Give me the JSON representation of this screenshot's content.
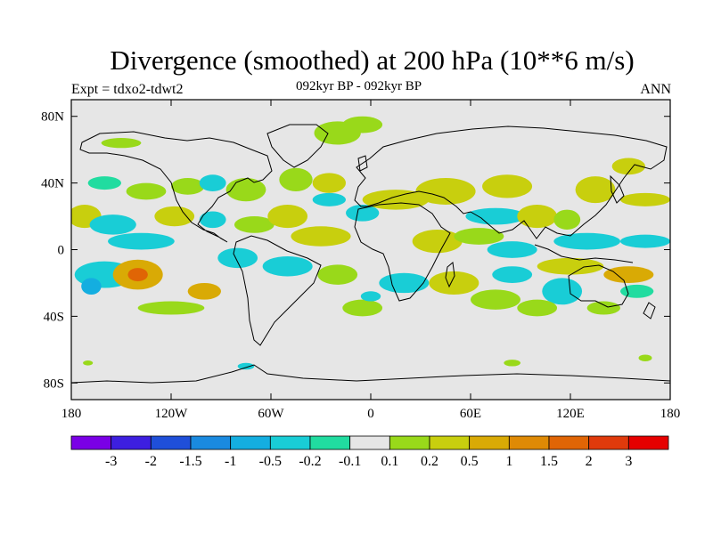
{
  "header": {
    "title": "Divergence (smoothed) at 200 hPa (10**6 m/s)",
    "experiment": "Expt = tdxo2-tdwt2",
    "period": "092kyr BP - 092kyr BP",
    "season": "ANN"
  },
  "map": {
    "projection": "cylindrical-equidistant",
    "lon_range": [
      -180,
      180
    ],
    "lat_range": [
      -90,
      90
    ],
    "background_color": "#e6e6e6",
    "x_ticks": [
      {
        "value": -180,
        "label": "180"
      },
      {
        "value": -120,
        "label": "120W"
      },
      {
        "value": -60,
        "label": "60W"
      },
      {
        "value": 0,
        "label": "0"
      },
      {
        "value": 60,
        "label": "60E"
      },
      {
        "value": 120,
        "label": "120E"
      },
      {
        "value": 180,
        "label": "180"
      }
    ],
    "y_ticks": [
      {
        "value": 80,
        "label": "80N"
      },
      {
        "value": 40,
        "label": "40N"
      },
      {
        "value": 0,
        "label": "0"
      },
      {
        "value": -40,
        "label": "40S"
      },
      {
        "value": -80,
        "label": "80S"
      }
    ]
  },
  "colorbar": {
    "colors": [
      "#7a00e6",
      "#3d1fe0",
      "#1f4fd9",
      "#1a8ae0",
      "#14aee0",
      "#19cdd6",
      "#21dca0",
      "#e6e6e6",
      "#99d91a",
      "#c8cf0e",
      "#d9aa05",
      "#df8a05",
      "#e06505",
      "#e03a0c",
      "#e60000"
    ],
    "labels": [
      "-3",
      "-2",
      "-1.5",
      "-1",
      "-0.5",
      "-0.2",
      "-0.1",
      "0.1",
      "0.2",
      "0.5",
      "1",
      "1.5",
      "2",
      "3"
    ]
  },
  "regions": [
    {
      "lon": -20,
      "lat": 70,
      "rx": 14,
      "ry": 7,
      "level": 8
    },
    {
      "lon": -5,
      "lat": 75,
      "rx": 12,
      "ry": 5,
      "level": 8
    },
    {
      "lon": -150,
      "lat": 64,
      "rx": 12,
      "ry": 3,
      "level": 8
    },
    {
      "lon": -160,
      "lat": 40,
      "rx": 10,
      "ry": 4,
      "level": 6
    },
    {
      "lon": -135,
      "lat": 35,
      "rx": 12,
      "ry": 5,
      "level": 8
    },
    {
      "lon": -110,
      "lat": 38,
      "rx": 10,
      "ry": 5,
      "level": 8
    },
    {
      "lon": -95,
      "lat": 40,
      "rx": 8,
      "ry": 5,
      "level": 5
    },
    {
      "lon": -75,
      "lat": 36,
      "rx": 12,
      "ry": 7,
      "level": 8
    },
    {
      "lon": -45,
      "lat": 42,
      "rx": 10,
      "ry": 7,
      "level": 8
    },
    {
      "lon": -25,
      "lat": 40,
      "rx": 10,
      "ry": 6,
      "level": 9
    },
    {
      "lon": -172,
      "lat": 20,
      "rx": 10,
      "ry": 7,
      "level": 9
    },
    {
      "lon": -155,
      "lat": 15,
      "rx": 14,
      "ry": 6,
      "level": 5
    },
    {
      "lon": -138,
      "lat": 5,
      "rx": 20,
      "ry": 5,
      "level": 5
    },
    {
      "lon": -118,
      "lat": 20,
      "rx": 12,
      "ry": 6,
      "level": 9
    },
    {
      "lon": -95,
      "lat": 18,
      "rx": 8,
      "ry": 5,
      "level": 5
    },
    {
      "lon": -70,
      "lat": 15,
      "rx": 12,
      "ry": 5,
      "level": 8
    },
    {
      "lon": -50,
      "lat": 20,
      "rx": 12,
      "ry": 7,
      "level": 9
    },
    {
      "lon": -30,
      "lat": 8,
      "rx": 18,
      "ry": 6,
      "level": 9
    },
    {
      "lon": -25,
      "lat": 30,
      "rx": 10,
      "ry": 4,
      "level": 5
    },
    {
      "lon": -5,
      "lat": 22,
      "rx": 10,
      "ry": 5,
      "level": 5
    },
    {
      "lon": 15,
      "lat": 30,
      "rx": 20,
      "ry": 6,
      "level": 9
    },
    {
      "lon": 45,
      "lat": 35,
      "rx": 18,
      "ry": 8,
      "level": 9
    },
    {
      "lon": 82,
      "lat": 38,
      "rx": 15,
      "ry": 7,
      "level": 9
    },
    {
      "lon": 75,
      "lat": 20,
      "rx": 18,
      "ry": 5,
      "level": 5
    },
    {
      "lon": 100,
      "lat": 20,
      "rx": 12,
      "ry": 7,
      "level": 9
    },
    {
      "lon": 118,
      "lat": 18,
      "rx": 8,
      "ry": 6,
      "level": 8
    },
    {
      "lon": 135,
      "lat": 36,
      "rx": 12,
      "ry": 8,
      "level": 9
    },
    {
      "lon": 155,
      "lat": 50,
      "rx": 10,
      "ry": 5,
      "level": 9
    },
    {
      "lon": 165,
      "lat": 30,
      "rx": 15,
      "ry": 4,
      "level": 9
    },
    {
      "lon": 130,
      "lat": 5,
      "rx": 20,
      "ry": 5,
      "level": 5
    },
    {
      "lon": 165,
      "lat": 5,
      "rx": 15,
      "ry": 4,
      "level": 5
    },
    {
      "lon": 40,
      "lat": 5,
      "rx": 15,
      "ry": 7,
      "level": 9
    },
    {
      "lon": 65,
      "lat": 8,
      "rx": 15,
      "ry": 5,
      "level": 8
    },
    {
      "lon": 85,
      "lat": 0,
      "rx": 15,
      "ry": 5,
      "level": 5
    },
    {
      "lon": -160,
      "lat": -15,
      "rx": 18,
      "ry": 8,
      "level": 5
    },
    {
      "lon": -140,
      "lat": -15,
      "rx": 15,
      "ry": 9,
      "level": 10
    },
    {
      "lon": -140,
      "lat": -15,
      "rx": 6,
      "ry": 4,
      "level": 12
    },
    {
      "lon": -100,
      "lat": -25,
      "rx": 10,
      "ry": 5,
      "level": 10
    },
    {
      "lon": -120,
      "lat": -35,
      "rx": 20,
      "ry": 4,
      "level": 8
    },
    {
      "lon": -80,
      "lat": -5,
      "rx": 12,
      "ry": 6,
      "level": 5
    },
    {
      "lon": -50,
      "lat": -10,
      "rx": 15,
      "ry": 6,
      "level": 5
    },
    {
      "lon": -20,
      "lat": -15,
      "rx": 12,
      "ry": 6,
      "level": 8
    },
    {
      "lon": -5,
      "lat": -35,
      "rx": 12,
      "ry": 5,
      "level": 8
    },
    {
      "lon": 0,
      "lat": -28,
      "rx": 6,
      "ry": 3,
      "level": 5
    },
    {
      "lon": 20,
      "lat": -20,
      "rx": 15,
      "ry": 6,
      "level": 5
    },
    {
      "lon": 50,
      "lat": -20,
      "rx": 15,
      "ry": 7,
      "level": 9
    },
    {
      "lon": 75,
      "lat": -30,
      "rx": 15,
      "ry": 6,
      "level": 8
    },
    {
      "lon": 85,
      "lat": -15,
      "rx": 12,
      "ry": 5,
      "level": 5
    },
    {
      "lon": 120,
      "lat": -10,
      "rx": 20,
      "ry": 5,
      "level": 9
    },
    {
      "lon": 155,
      "lat": -15,
      "rx": 15,
      "ry": 5,
      "level": 10
    },
    {
      "lon": 115,
      "lat": -25,
      "rx": 12,
      "ry": 8,
      "level": 5
    },
    {
      "lon": 160,
      "lat": -25,
      "rx": 10,
      "ry": 4,
      "level": 6
    },
    {
      "lon": 100,
      "lat": -35,
      "rx": 12,
      "ry": 5,
      "level": 8
    },
    {
      "lon": 140,
      "lat": -35,
      "rx": 10,
      "ry": 4,
      "level": 8
    },
    {
      "lon": -168,
      "lat": -22,
      "rx": 6,
      "ry": 5,
      "level": 4
    },
    {
      "lon": -170,
      "lat": -68,
      "rx": 3,
      "ry": 1.5,
      "level": 8
    },
    {
      "lon": -75,
      "lat": -70,
      "rx": 5,
      "ry": 2,
      "level": 5
    },
    {
      "lon": 85,
      "lat": -68,
      "rx": 5,
      "ry": 2,
      "level": 8
    },
    {
      "lon": 165,
      "lat": -65,
      "rx": 4,
      "ry": 2,
      "level": 8
    }
  ]
}
